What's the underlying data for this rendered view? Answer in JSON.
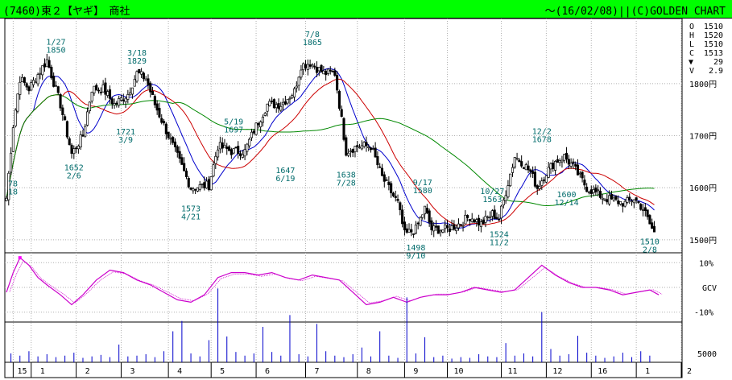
{
  "header": {
    "code": "(7460)",
    "market": "東２",
    "company": "【ヤギ】",
    "sector": "商社",
    "date": "～(16/02/08)",
    "source": "||(C)GOLDEN CHART"
  },
  "ohlc": {
    "o_label": "O",
    "o_value": "1510",
    "h_label": "H",
    "h_value": "1520",
    "l_label": "L",
    "l_value": "1510",
    "c_label": "C",
    "c_value": "1513",
    "change_symbol": "▼",
    "change_value": "29",
    "v_label": "V",
    "v_value": "2.9"
  },
  "colors": {
    "header": "#00ff00",
    "candle": "#000000",
    "ma_short": "#0000cc",
    "ma_mid": "#cc0000",
    "ma_long": "#008800",
    "annotation": "#006b6b",
    "oscillator": "#cc00cc",
    "volume": "#0000cc"
  },
  "chart_data": [
    {
      "type": "candlestick",
      "ylim": [
        1475,
        1925
      ],
      "y_ticks": [
        1500,
        1600,
        1700,
        1800
      ],
      "y_tick_labels": [
        "1500円",
        "1600円",
        "1700円",
        "1800円"
      ],
      "x_tick_labels": [
        "15",
        "1",
        "2",
        "3",
        "4",
        "5",
        "6",
        "7",
        "8",
        "9",
        "10",
        "11",
        "12",
        "16",
        "1",
        "2"
      ],
      "x_ticks_at_day": [
        3,
        11,
        31,
        51,
        72,
        91,
        111,
        133,
        156,
        177,
        196,
        220,
        240,
        260,
        280,
        300
      ],
      "days_total": 300,
      "anchors": [
        {
          "day": 0,
          "price": 1580
        },
        {
          "day": 3,
          "price": 1720
        },
        {
          "day": 6,
          "price": 1810
        },
        {
          "day": 10,
          "price": 1790
        },
        {
          "day": 18,
          "price": 1845
        },
        {
          "day": 24,
          "price": 1760
        },
        {
          "day": 29,
          "price": 1665
        },
        {
          "day": 34,
          "price": 1700
        },
        {
          "day": 38,
          "price": 1790
        },
        {
          "day": 43,
          "price": 1790
        },
        {
          "day": 48,
          "price": 1760
        },
        {
          "day": 54,
          "price": 1780
        },
        {
          "day": 58,
          "price": 1820
        },
        {
          "day": 62,
          "price": 1810
        },
        {
          "day": 66,
          "price": 1760
        },
        {
          "day": 72,
          "price": 1700
        },
        {
          "day": 78,
          "price": 1640
        },
        {
          "day": 82,
          "price": 1600
        },
        {
          "day": 90,
          "price": 1605
        },
        {
          "day": 94,
          "price": 1680
        },
        {
          "day": 100,
          "price": 1670
        },
        {
          "day": 106,
          "price": 1670
        },
        {
          "day": 110,
          "price": 1710
        },
        {
          "day": 116,
          "price": 1760
        },
        {
          "day": 122,
          "price": 1760
        },
        {
          "day": 128,
          "price": 1785
        },
        {
          "day": 131,
          "price": 1835
        },
        {
          "day": 135,
          "price": 1840
        },
        {
          "day": 141,
          "price": 1820
        },
        {
          "day": 146,
          "price": 1820
        },
        {
          "day": 151,
          "price": 1670
        },
        {
          "day": 156,
          "price": 1680
        },
        {
          "day": 162,
          "price": 1680
        },
        {
          "day": 167,
          "price": 1620
        },
        {
          "day": 174,
          "price": 1570
        },
        {
          "day": 177,
          "price": 1510
        },
        {
          "day": 182,
          "price": 1520
        },
        {
          "day": 186,
          "price": 1560
        },
        {
          "day": 189,
          "price": 1520
        },
        {
          "day": 196,
          "price": 1520
        },
        {
          "day": 201,
          "price": 1530
        },
        {
          "day": 206,
          "price": 1545
        },
        {
          "day": 211,
          "price": 1530
        },
        {
          "day": 216,
          "price": 1550
        },
        {
          "day": 219,
          "price": 1540
        },
        {
          "day": 223,
          "price": 1610
        },
        {
          "day": 226,
          "price": 1660
        },
        {
          "day": 229,
          "price": 1650
        },
        {
          "day": 233,
          "price": 1630
        },
        {
          "day": 236,
          "price": 1600
        },
        {
          "day": 240,
          "price": 1630
        },
        {
          "day": 244,
          "price": 1650
        },
        {
          "day": 248,
          "price": 1660
        },
        {
          "day": 252,
          "price": 1640
        },
        {
          "day": 255,
          "price": 1620
        },
        {
          "day": 258,
          "price": 1600
        },
        {
          "day": 262,
          "price": 1590
        },
        {
          "day": 266,
          "price": 1580
        },
        {
          "day": 270,
          "price": 1575
        },
        {
          "day": 275,
          "price": 1570
        },
        {
          "day": 279,
          "price": 1580
        },
        {
          "day": 283,
          "price": 1560
        },
        {
          "day": 286,
          "price": 1530
        },
        {
          "day": 288,
          "price": 1513
        }
      ],
      "moving_averages": [
        {
          "window": 13,
          "color": "#0000cc"
        },
        {
          "window": 26,
          "color": "#cc0000"
        },
        {
          "window": 75,
          "color": "#008800"
        }
      ],
      "annotations": [
        {
          "day": 1,
          "price": 1578,
          "lines": [
            "78",
            "18"
          ]
        },
        {
          "day": 22,
          "price": 1850,
          "lines": [
            "1/27",
            "1850"
          ]
        },
        {
          "day": 30,
          "price": 1652,
          "lines": [
            "1652",
            "2/6"
          ]
        },
        {
          "day": 58,
          "price": 1829,
          "lines": [
            "3/18",
            "1829"
          ]
        },
        {
          "day": 53,
          "price": 1721,
          "lines": [
            "1721",
            "3/9"
          ]
        },
        {
          "day": 82,
          "price": 1573,
          "lines": [
            "1573",
            "4/21"
          ]
        },
        {
          "day": 101,
          "price": 1697,
          "lines": [
            "5/19",
            "1697"
          ]
        },
        {
          "day": 124,
          "price": 1647,
          "lines": [
            "1647",
            "6/19"
          ]
        },
        {
          "day": 136,
          "price": 1865,
          "lines": [
            "7/8",
            "1865"
          ]
        },
        {
          "day": 151,
          "price": 1638,
          "lines": [
            "1638",
            "7/28"
          ]
        },
        {
          "day": 185,
          "price": 1580,
          "lines": [
            "9/17",
            "1580"
          ]
        },
        {
          "day": 182,
          "price": 1498,
          "lines": [
            "1498",
            "9/10"
          ]
        },
        {
          "day": 216,
          "price": 1563,
          "lines": [
            "10/27",
            "1563"
          ]
        },
        {
          "day": 219,
          "price": 1524,
          "lines": [
            "1524",
            "11/2"
          ]
        },
        {
          "day": 238,
          "price": 1678,
          "lines": [
            "12/2",
            "1678"
          ]
        },
        {
          "day": 249,
          "price": 1600,
          "lines": [
            "1600",
            "12/14"
          ]
        },
        {
          "day": 286,
          "price": 1510,
          "lines": [
            "1510",
            "2/8"
          ]
        }
      ]
    },
    {
      "type": "line",
      "name": "GCV",
      "ylim": [
        -14,
        14
      ],
      "y_tick_labels": [
        "10%",
        "GCV",
        "-10%"
      ],
      "x": [
        0,
        3,
        6,
        10,
        14,
        18,
        24,
        29,
        34,
        40,
        46,
        52,
        58,
        64,
        70,
        76,
        82,
        88,
        94,
        100,
        106,
        112,
        118,
        124,
        130,
        136,
        142,
        148,
        154,
        160,
        166,
        172,
        178,
        184,
        190,
        196,
        202,
        208,
        214,
        220,
        226,
        232,
        238,
        244,
        250,
        256,
        262,
        268,
        274,
        280,
        286,
        290
      ],
      "y": [
        -2,
        6,
        12,
        9,
        4,
        1,
        -3,
        -7,
        -3,
        3,
        7,
        6,
        3,
        1,
        -2,
        -5,
        -6,
        -3,
        4,
        6,
        6,
        5,
        6,
        4,
        3,
        5,
        4,
        3,
        -2,
        -7,
        -6,
        -4,
        -6,
        -4,
        -3,
        -3,
        -2,
        0,
        -1,
        -2,
        -1,
        4,
        9,
        5,
        2,
        0,
        0,
        -1,
        -3,
        -2,
        -1,
        -3
      ]
    },
    {
      "type": "bar",
      "name": "volume",
      "y_tick_labels": [
        "5000"
      ],
      "ylim": [
        0,
        12000
      ],
      "x": [
        2,
        6,
        10,
        14,
        18,
        22,
        26,
        30,
        34,
        38,
        42,
        46,
        50,
        54,
        58,
        62,
        66,
        70,
        74,
        78,
        82,
        86,
        90,
        94,
        98,
        102,
        106,
        110,
        114,
        118,
        122,
        126,
        130,
        134,
        138,
        142,
        146,
        150,
        154,
        158,
        162,
        166,
        170,
        174,
        178,
        182,
        186,
        190,
        194,
        198,
        202,
        206,
        210,
        214,
        218,
        222,
        226,
        230,
        234,
        238,
        242,
        246,
        250,
        254,
        258,
        262,
        266,
        270,
        274,
        278,
        282,
        286
      ],
      "values": [
        1200,
        900,
        1500,
        800,
        1100,
        700,
        900,
        1300,
        600,
        800,
        1000,
        700,
        2400,
        800,
        900,
        1100,
        700,
        1500,
        4200,
        5600,
        1200,
        800,
        3000,
        10000,
        3500,
        1400,
        900,
        1200,
        4800,
        1400,
        900,
        6400,
        1100,
        800,
        5200,
        1500,
        900,
        700,
        1100,
        2000,
        800,
        4200,
        900,
        600,
        8800,
        1200,
        3400,
        700,
        900,
        500,
        700,
        600,
        1100,
        800,
        700,
        2600,
        900,
        1200,
        800,
        6800,
        1800,
        900,
        1100,
        3600,
        1300,
        900,
        600,
        800,
        1300,
        700,
        1500,
        900
      ]
    }
  ]
}
